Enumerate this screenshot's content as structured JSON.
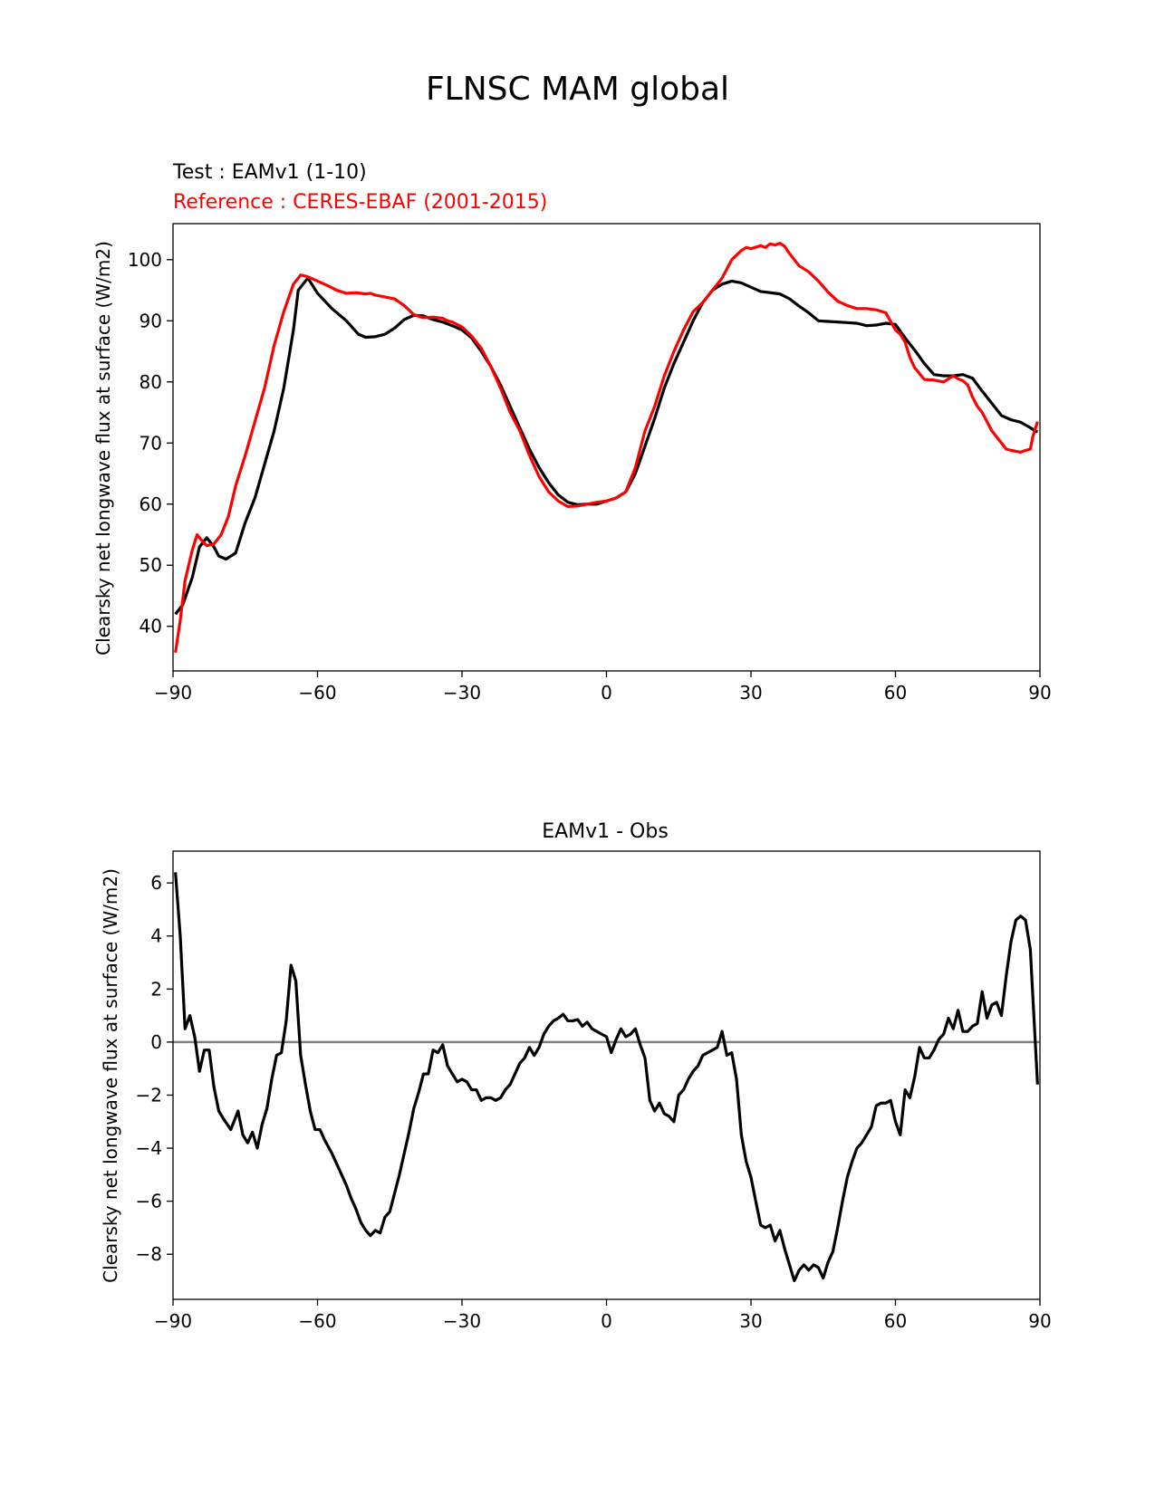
{
  "figure": {
    "title": "FLNSC MAM global"
  },
  "chart_data": [
    {
      "type": "line",
      "test_label": "Test : EAMv1 (1-10)",
      "ref_label": "Reference : CERES-EBAF (2001-2015)",
      "xlabel": "",
      "ylabel": "Clearsky net longwave flux at surface (W/m2)",
      "xlim": [
        -90,
        90
      ],
      "ylim": [
        32.7,
        105.9
      ],
      "xticks": [
        -90,
        -60,
        -30,
        0,
        30,
        60,
        90
      ],
      "xtick_labels": [
        "−90",
        "−60",
        "−30",
        "0",
        "30",
        "60",
        "90"
      ],
      "yticks": [
        40,
        50,
        60,
        70,
        80,
        90,
        100
      ],
      "series": [
        {
          "color": "#000000",
          "x": [
            -89.5,
            -88,
            -86,
            -84.5,
            -83,
            -81.5,
            -80.5,
            -79,
            -77,
            -75,
            -73,
            -71,
            -69,
            -67,
            -65,
            -64,
            -62,
            -60,
            -57,
            -54,
            -51.5,
            -50,
            -48,
            -46,
            -44,
            -42,
            -40,
            -38,
            -36,
            -34,
            -32,
            -30,
            -28,
            -26,
            -24,
            -22,
            -20,
            -18,
            -16,
            -14,
            -12,
            -10,
            -8,
            -6,
            -4,
            -2,
            0,
            2,
            4,
            6,
            8,
            10,
            12,
            14,
            16,
            18,
            20,
            22,
            24,
            26,
            28,
            30,
            32,
            34,
            36,
            38,
            40,
            42,
            44,
            46,
            48,
            50,
            52,
            54,
            56,
            58,
            60,
            62,
            64,
            66,
            68,
            70,
            72,
            74,
            76,
            78,
            80,
            82,
            84,
            86,
            88,
            89.5
          ],
          "y": [
            42,
            43.5,
            48,
            53,
            54.5,
            53,
            51.5,
            51,
            52,
            57,
            61,
            66.5,
            72,
            79,
            88.5,
            95,
            97,
            94.5,
            92,
            90,
            87.8,
            87.3,
            87.4,
            87.8,
            88.8,
            90.2,
            90.9,
            90.8,
            90.2,
            89.8,
            89.2,
            88.5,
            87.2,
            85,
            82.5,
            79.5,
            76,
            72.5,
            69,
            66,
            63.5,
            61.5,
            60.3,
            59.9,
            60,
            60,
            60.5,
            61,
            62,
            65,
            69.5,
            74,
            79,
            83,
            86.5,
            90,
            93,
            95,
            96,
            96.5,
            96.2,
            95.5,
            94.8,
            94.6,
            94.4,
            93.6,
            92.4,
            91.3,
            90,
            89.9,
            89.8,
            89.7,
            89.6,
            89.2,
            89.3,
            89.6,
            89.4,
            87.2,
            85.2,
            83,
            81.2,
            81,
            81,
            81.2,
            80.6,
            78.5,
            76.5,
            74.5,
            73.8,
            73.4,
            72.5,
            71.8
          ]
        },
        {
          "color": "#ff0000",
          "x": [
            -89.5,
            -88.5,
            -87.5,
            -86,
            -85,
            -84,
            -83,
            -81.5,
            -80,
            -78.5,
            -77,
            -75,
            -73,
            -71,
            -69,
            -67,
            -65,
            -63.5,
            -62,
            -60,
            -58,
            -56,
            -54,
            -52,
            -50,
            -49,
            -48,
            -46,
            -44,
            -42,
            -40,
            -38,
            -36,
            -34,
            -33,
            -32,
            -30,
            -28,
            -26,
            -24,
            -22,
            -20,
            -18,
            -16,
            -14,
            -12,
            -10,
            -8,
            -6,
            -4,
            -2,
            0,
            2,
            4,
            6,
            8,
            10,
            12,
            14,
            16,
            18,
            20,
            22,
            24,
            26,
            28,
            29,
            30,
            32,
            33,
            34,
            35,
            36,
            37,
            38,
            39,
            40,
            42,
            44,
            46,
            48,
            50,
            52,
            54,
            56,
            58,
            60,
            61,
            62,
            63,
            64,
            66,
            68,
            70,
            71,
            72,
            73,
            74,
            75,
            76,
            77,
            78,
            80,
            82,
            83,
            84,
            86,
            87,
            88,
            88.5,
            89.5
          ],
          "y": [
            35.7,
            41,
            47.5,
            52.5,
            55,
            54,
            53.2,
            53.5,
            55,
            58,
            63,
            68,
            73.5,
            79,
            86,
            91.5,
            96,
            97.5,
            97.2,
            96.5,
            95.8,
            95,
            94.5,
            94.6,
            94.4,
            94.5,
            94.2,
            93.9,
            93.6,
            92.5,
            91,
            90.5,
            90.6,
            90.4,
            90,
            89.8,
            89,
            87.5,
            85.5,
            82.5,
            79,
            75,
            72,
            68,
            64.5,
            62,
            60.5,
            59.6,
            59.7,
            60,
            60.3,
            60.5,
            61,
            62,
            66,
            72,
            76,
            81,
            85,
            88.5,
            91.5,
            93,
            95,
            97,
            100,
            101.5,
            102,
            101.8,
            102.3,
            102,
            102.6,
            102.4,
            102.7,
            102.2,
            101,
            100,
            99,
            98,
            96.5,
            94.7,
            93.2,
            92.5,
            92,
            92,
            91.8,
            91.3,
            88.5,
            87.8,
            86.5,
            84,
            82.3,
            80.4,
            80.3,
            80,
            80.5,
            81,
            80.5,
            80.2,
            79.5,
            77.5,
            76,
            75,
            72,
            70,
            69,
            68.8,
            68.5,
            68.8,
            69,
            71,
            73.5
          ]
        }
      ]
    },
    {
      "type": "line",
      "title": "EAMv1 - Obs",
      "xlabel": "",
      "ylabel": "Clearsky net longwave flux at surface (W/m2)",
      "xlim": [
        -90,
        90
      ],
      "ylim": [
        -9.7,
        7.2
      ],
      "xticks": [
        -90,
        -60,
        -30,
        0,
        30,
        60,
        90
      ],
      "xtick_labels": [
        "−90",
        "−60",
        "−30",
        "0",
        "30",
        "60",
        "90"
      ],
      "yticks": [
        -8,
        -6,
        -4,
        -2,
        0,
        2,
        4,
        6
      ],
      "ytick_labels": [
        "−8",
        "−6",
        "−4",
        "−2",
        "0",
        "2",
        "4",
        "6"
      ],
      "zero_line": {
        "y": 0,
        "color": "#808080"
      },
      "series": [
        {
          "color": "#000000",
          "x": [
            -89.5,
            -88.5,
            -87.5,
            -86.5,
            -85.5,
            -84.5,
            -83.5,
            -82.5,
            -81.5,
            -80.5,
            -79.5,
            -78,
            -76.5,
            -75.5,
            -74.5,
            -73.5,
            -72.5,
            -71.5,
            -70.5,
            -69.5,
            -68.5,
            -67.5,
            -66.5,
            -65.5,
            -64.5,
            -63.5,
            -62.5,
            -61.5,
            -60.5,
            -59.5,
            -58.5,
            -57,
            -55.5,
            -54,
            -53,
            -52,
            -51,
            -50,
            -49,
            -48,
            -47,
            -46,
            -45,
            -44,
            -43,
            -42,
            -41,
            -40,
            -39,
            -38,
            -37,
            -36,
            -35,
            -34,
            -33,
            -32,
            -31,
            -30,
            -29,
            -28,
            -27,
            -26,
            -25,
            -24,
            -23,
            -22,
            -21,
            -20,
            -19,
            -18,
            -17,
            -16,
            -15,
            -14,
            -13,
            -12,
            -11,
            -10,
            -9,
            -8,
            -7,
            -6,
            -5,
            -4,
            -3,
            -2,
            -1,
            0,
            1,
            2,
            3,
            4,
            5,
            6,
            7,
            8,
            9,
            10,
            11,
            12,
            13,
            14,
            15,
            16,
            17,
            18,
            19,
            20,
            21,
            22,
            23,
            24,
            25,
            26,
            27,
            28,
            29,
            30,
            31,
            32,
            33,
            34,
            35,
            36,
            37,
            38,
            39,
            40,
            41,
            42,
            43,
            44,
            45,
            46,
            47,
            48,
            49,
            50,
            51,
            52,
            53,
            54,
            55,
            56,
            57,
            58,
            59,
            60,
            61,
            62,
            63,
            64,
            65,
            66,
            67,
            68,
            69,
            70,
            71,
            72,
            73,
            74,
            75,
            76,
            77,
            78,
            79,
            80,
            81,
            82,
            83,
            84,
            85,
            86,
            87,
            88,
            89.5
          ],
          "y": [
            6.4,
            4,
            0.5,
            1,
            0.2,
            -1.1,
            -0.3,
            -0.3,
            -1.7,
            -2.6,
            -2.9,
            -3.3,
            -2.6,
            -3.5,
            -3.8,
            -3.4,
            -4,
            -3.1,
            -2.5,
            -1.4,
            -0.5,
            -0.4,
            0.8,
            2.9,
            2.3,
            -0.5,
            -1.6,
            -2.6,
            -3.3,
            -3.3,
            -3.7,
            -4.2,
            -4.8,
            -5.4,
            -5.9,
            -6.3,
            -6.8,
            -7.1,
            -7.3,
            -7.1,
            -7.2,
            -6.6,
            -6.4,
            -5.7,
            -5,
            -4.2,
            -3.4,
            -2.5,
            -1.9,
            -1.2,
            -1.2,
            -0.3,
            -0.4,
            -0.1,
            -0.9,
            -1.2,
            -1.5,
            -1.4,
            -1.5,
            -1.8,
            -1.8,
            -2.2,
            -2.1,
            -2.1,
            -2.2,
            -2.1,
            -1.8,
            -1.6,
            -1.2,
            -0.8,
            -0.6,
            -0.2,
            -0.5,
            -0.2,
            0.3,
            0.6,
            0.8,
            0.9,
            1.05,
            0.8,
            0.8,
            0.85,
            0.6,
            0.75,
            0.5,
            0.4,
            0.3,
            0.2,
            -0.4,
            0.1,
            0.5,
            0.2,
            0.3,
            0.5,
            -0.1,
            -0.6,
            -2.2,
            -2.6,
            -2.3,
            -2.7,
            -2.8,
            -3,
            -2,
            -1.8,
            -1.4,
            -1.1,
            -0.9,
            -0.5,
            -0.4,
            -0.3,
            -0.2,
            0.4,
            -0.5,
            -0.4,
            -1.4,
            -3.5,
            -4.5,
            -5.1,
            -6,
            -6.9,
            -7,
            -6.9,
            -7.5,
            -7.1,
            -7.8,
            -8.4,
            -9,
            -8.6,
            -8.4,
            -8.6,
            -8.4,
            -8.5,
            -8.9,
            -8.3,
            -7.9,
            -7,
            -6,
            -5.1,
            -4.5,
            -4,
            -3.8,
            -3.5,
            -3.2,
            -2.4,
            -2.3,
            -2.3,
            -2.2,
            -3,
            -3.5,
            -1.8,
            -2.1,
            -1.3,
            -0.2,
            -0.6,
            -0.6,
            -0.3,
            0.1,
            0.3,
            0.9,
            0.5,
            1.2,
            0.4,
            0.4,
            0.6,
            0.7,
            1.9,
            0.9,
            1.4,
            1.5,
            1,
            2.5,
            3.8,
            4.6,
            4.75,
            4.6,
            3.5,
            -1.6
          ]
        }
      ]
    }
  ]
}
